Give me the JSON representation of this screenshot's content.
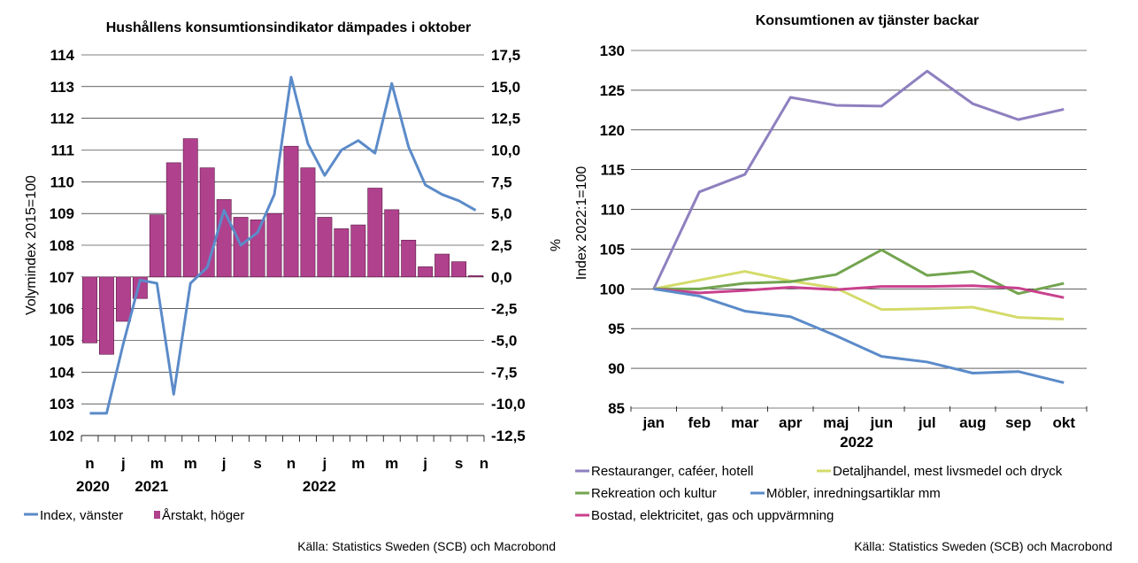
{
  "chart_data": [
    {
      "type": "bar+line",
      "title": "Hushållens konsumtionsindikator dämpades i oktober",
      "ylabel_left": "Volymindex 2015=100",
      "ylabel_right": "%",
      "ylim_left": [
        102,
        114
      ],
      "ylim_right": [
        -12.5,
        17.5
      ],
      "yticks_left": [
        "102",
        "103",
        "104",
        "105",
        "106",
        "107",
        "108",
        "109",
        "110",
        "111",
        "112",
        "113",
        "114"
      ],
      "yticks_right": [
        "-12,5",
        "-10,0",
        "-7,5",
        "-5,0",
        "-2,5",
        "0,0",
        "2,5",
        "5,0",
        "7,5",
        "10,0",
        "12,5",
        "15,0",
        "17,5"
      ],
      "x_tick_labels": [
        "n",
        "j",
        "m",
        "m",
        "j",
        "s",
        "n",
        "j",
        "m",
        "m",
        "j",
        "s",
        "n"
      ],
      "year_labels": [
        "2020",
        "2021",
        "2022"
      ],
      "months": [
        "2020-11",
        "2020-12",
        "2021-01",
        "2021-02",
        "2021-03",
        "2021-04",
        "2021-05",
        "2021-06",
        "2021-07",
        "2021-08",
        "2021-09",
        "2021-10",
        "2021-11",
        "2021-12",
        "2022-01",
        "2022-02",
        "2022-03",
        "2022-04",
        "2022-05",
        "2022-06",
        "2022-07",
        "2022-08",
        "2022-09",
        "2022-10"
      ],
      "series": [
        {
          "name": "Årstakt, höger",
          "axis": "right",
          "kind": "bar",
          "color": "#b0418d",
          "values": [
            -5.2,
            -6.1,
            -3.5,
            -1.7,
            4.9,
            9.0,
            10.9,
            8.6,
            6.1,
            4.7,
            4.5,
            5.0,
            10.3,
            8.6,
            4.7,
            3.8,
            4.1,
            7.0,
            5.3,
            2.9,
            0.8,
            1.8,
            1.2,
            0.1
          ]
        },
        {
          "name": "Index, vänster",
          "axis": "left",
          "kind": "line",
          "color": "#5b8bc9",
          "values": [
            102.7,
            102.7,
            104.9,
            106.9,
            106.8,
            103.3,
            106.8,
            107.3,
            109.1,
            108.0,
            108.4,
            109.6,
            113.3,
            111.2,
            110.2,
            111.0,
            111.3,
            110.9,
            113.1,
            111.1,
            109.9,
            109.6,
            109.4,
            109.1
          ]
        }
      ]
    },
    {
      "type": "line",
      "title": "Konsumtionen av tjänster backar",
      "ylabel": "Index 2022:1=100",
      "xlabel": "2022",
      "ylim": [
        85,
        130
      ],
      "yticks": [
        "85",
        "90",
        "95",
        "100",
        "105",
        "110",
        "115",
        "120",
        "125",
        "130"
      ],
      "categories": [
        "jan",
        "feb",
        "mar",
        "apr",
        "maj",
        "jun",
        "jul",
        "aug",
        "sep",
        "okt"
      ],
      "series": [
        {
          "name": "Restauranger, caféer, hotell",
          "color": "#8e80bf",
          "values": [
            100,
            112.2,
            114.4,
            124.1,
            123.1,
            123.0,
            127.4,
            123.3,
            121.3,
            122.6
          ]
        },
        {
          "name": "Detaljhandel, mest livsmedel och dryck",
          "color": "#d4db6a",
          "values": [
            100,
            101.1,
            102.2,
            101.0,
            100.1,
            97.4,
            97.5,
            97.7,
            96.4,
            96.2
          ]
        },
        {
          "name": "Rekreation och kultur",
          "color": "#73a44f",
          "values": [
            100,
            100.0,
            100.7,
            100.9,
            101.8,
            104.9,
            101.7,
            102.2,
            99.4,
            100.7
          ]
        },
        {
          "name": "Möbler, inredningsartiklar mm",
          "color": "#5b8bc9",
          "values": [
            100,
            99.1,
            97.2,
            96.5,
            94.1,
            91.5,
            90.8,
            89.4,
            89.6,
            88.2
          ]
        },
        {
          "name": "Bostad, elektricitet, gas och uppvärmning",
          "color": "#c8418d",
          "values": [
            100,
            99.5,
            99.8,
            100.2,
            99.9,
            100.3,
            100.3,
            100.4,
            100.1,
            98.9
          ]
        }
      ]
    }
  ],
  "sources": [
    "Källa: Statistics Sweden (SCB) och Macrobond",
    "Källa: Statistics Sweden (SCB) och Macrobond"
  ]
}
